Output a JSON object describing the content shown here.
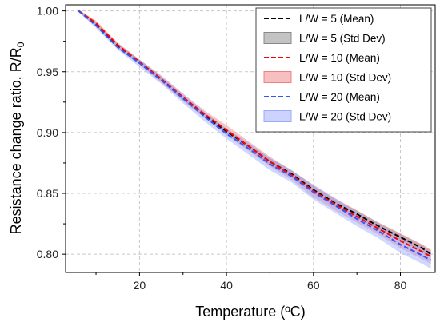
{
  "chart_data": {
    "type": "line",
    "title": "",
    "xlabel": "Temperature (ºC)",
    "ylabel_main": "Resistance change ratio, R/R",
    "ylabel_sub": "0",
    "xlim": [
      3,
      88
    ],
    "ylim": [
      0.785,
      1.005
    ],
    "xticks": [
      20,
      40,
      60,
      80
    ],
    "yticks": [
      0.8,
      0.85,
      0.9,
      0.95,
      1.0
    ],
    "xtick_labels": [
      "20",
      "40",
      "60",
      "80"
    ],
    "ytick_labels": [
      "0.80",
      "0.85",
      "0.90",
      "0.95",
      "1.00"
    ],
    "grid": true,
    "legend_position": "top-right",
    "x": [
      6,
      10,
      15,
      20,
      25,
      30,
      35,
      40,
      45,
      50,
      55,
      60,
      65,
      70,
      75,
      80,
      85,
      87
    ],
    "series": [
      {
        "name": "L/W = 5 (Mean)",
        "band_name": "L/W = 5 (Std Dev)",
        "color": "#000000",
        "band_color": "#888888",
        "values": [
          1.0,
          0.989,
          0.971,
          0.958,
          0.944,
          0.928,
          0.914,
          0.901,
          0.889,
          0.876,
          0.866,
          0.853,
          0.842,
          0.833,
          0.823,
          0.814,
          0.805,
          0.8
        ],
        "std": [
          0.001,
          0.002,
          0.002,
          0.002,
          0.002,
          0.002,
          0.002,
          0.002,
          0.002,
          0.003,
          0.003,
          0.003,
          0.003,
          0.003,
          0.003,
          0.003,
          0.003,
          0.003
        ]
      },
      {
        "name": "L/W = 10 (Mean)",
        "band_name": "L/W = 10 (Std Dev)",
        "color": "#ff0000",
        "band_color": "#f08080",
        "values": [
          1.0,
          0.99,
          0.972,
          0.958,
          0.944,
          0.929,
          0.915,
          0.902,
          0.889,
          0.876,
          0.865,
          0.852,
          0.841,
          0.831,
          0.821,
          0.811,
          0.802,
          0.798
        ],
        "std": [
          0.001,
          0.002,
          0.002,
          0.002,
          0.003,
          0.003,
          0.003,
          0.004,
          0.004,
          0.004,
          0.004,
          0.005,
          0.005,
          0.005,
          0.005,
          0.006,
          0.006,
          0.006
        ]
      },
      {
        "name": "L/W = 20 (Mean)",
        "band_name": "L/W = 20 (Std Dev)",
        "color": "#3355ff",
        "band_color": "#9aa8ff",
        "values": [
          1.0,
          0.988,
          0.97,
          0.957,
          0.943,
          0.928,
          0.913,
          0.899,
          0.887,
          0.874,
          0.864,
          0.851,
          0.84,
          0.829,
          0.819,
          0.808,
          0.799,
          0.795
        ],
        "std": [
          0.001,
          0.002,
          0.002,
          0.003,
          0.003,
          0.004,
          0.004,
          0.004,
          0.005,
          0.005,
          0.005,
          0.006,
          0.006,
          0.006,
          0.006,
          0.007,
          0.007,
          0.007
        ]
      }
    ]
  }
}
